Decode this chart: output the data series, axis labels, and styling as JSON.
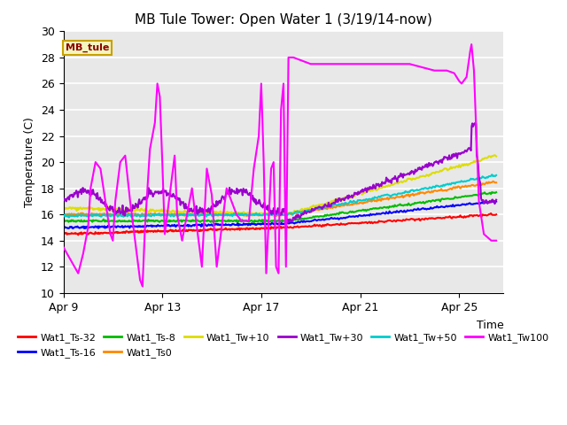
{
  "title": "MB Tule Tower: Open Water 1 (3/19/14-now)",
  "ylabel": "Temperature (C)",
  "xlabel": "Time",
  "ylim": [
    10,
    30
  ],
  "yticks": [
    10,
    12,
    14,
    16,
    18,
    20,
    22,
    24,
    26,
    28,
    30
  ],
  "plot_bg": "#e8e8e8",
  "label_box": "MB_tule",
  "series": {
    "Wat1_Ts-32": {
      "color": "#ff0000"
    },
    "Wat1_Ts-16": {
      "color": "#0000ff"
    },
    "Wat1_Ts-8": {
      "color": "#00bb00"
    },
    "Wat1_Ts0": {
      "color": "#ff8800"
    },
    "Wat1_Tw+10": {
      "color": "#dddd00"
    },
    "Wat1_Tw+30": {
      "color": "#9900cc"
    },
    "Wat1_Tw+50": {
      "color": "#00cccc"
    },
    "Wat1_Tw100": {
      "color": "#ff00ff"
    }
  },
  "xtick_positions": [
    0,
    4,
    8,
    12,
    16
  ],
  "xtick_labels": [
    "Apr 9",
    "Apr 13",
    "Apr 17",
    "Apr 21",
    "Apr 25"
  ],
  "xlim": [
    0,
    17.8
  ],
  "legend_order": [
    "Wat1_Ts-32",
    "Wat1_Ts-16",
    "Wat1_Ts-8",
    "Wat1_Ts0",
    "Wat1_Tw+10",
    "Wat1_Tw+30",
    "Wat1_Tw+50",
    "Wat1_Tw100"
  ]
}
